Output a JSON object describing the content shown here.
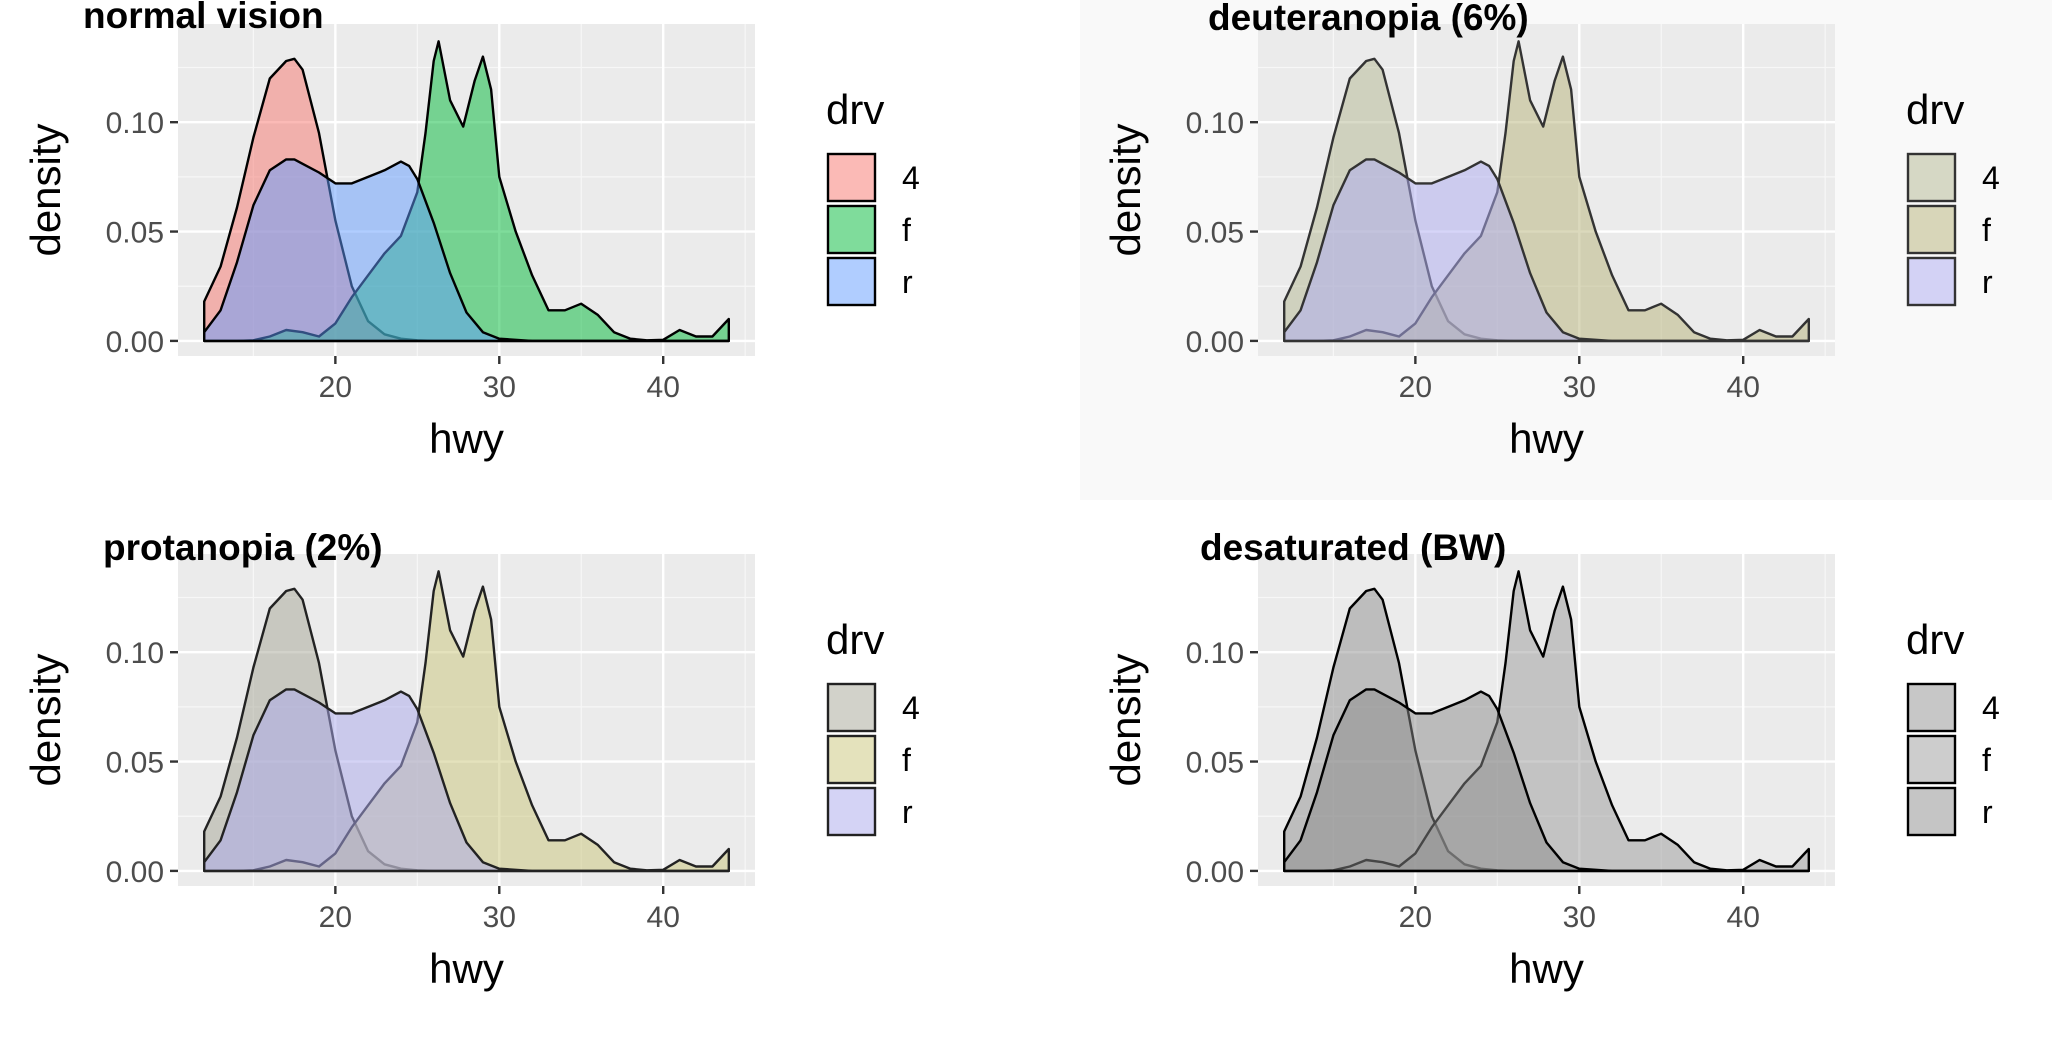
{
  "chart_data": [
    {
      "type": "area",
      "title": "normal vision",
      "xlabel": "hwy",
      "ylabel": "density",
      "xlim": [
        10.4,
        45.6
      ],
      "ylim": [
        -0.0069,
        0.1449
      ],
      "xticks": [
        20,
        30,
        40
      ],
      "yticks": [
        0.0,
        0.05,
        0.1
      ],
      "ytick_labels": [
        "0.00",
        "0.05",
        "0.10"
      ],
      "grid": true,
      "legend": {
        "title": "drv",
        "position": "right",
        "entries": [
          "4",
          "f",
          "r"
        ]
      },
      "series_style": [
        {
          "name": "4",
          "fill": "#F8766D",
          "stroke": "#000000"
        },
        {
          "name": "f",
          "fill": "#00BA38",
          "stroke": "#000000"
        },
        {
          "name": "r",
          "fill": "#619CFF",
          "stroke": "#000000"
        }
      ]
    },
    {
      "type": "area",
      "title": "deuteranopia (6%)",
      "xlabel": "hwy",
      "ylabel": "density",
      "xlim": [
        10.4,
        45.6
      ],
      "ylim": [
        -0.0069,
        0.1449
      ],
      "xticks": [
        20,
        30,
        40
      ],
      "yticks": [
        0.0,
        0.05,
        0.1
      ],
      "ytick_labels": [
        "0.00",
        "0.05",
        "0.10"
      ],
      "grid": true,
      "legend": {
        "title": "drv",
        "position": "right",
        "entries": [
          "4",
          "f",
          "r"
        ]
      },
      "series_style": [
        {
          "name": "4",
          "fill": "#B4B792",
          "stroke": "#333333"
        },
        {
          "name": "f",
          "fill": "#B8B37A",
          "stroke": "#333333"
        },
        {
          "name": "r",
          "fill": "#AEABF2",
          "stroke": "#333333"
        }
      ]
    },
    {
      "type": "area",
      "title": "protanopia (2%)",
      "xlabel": "hwy",
      "ylabel": "density",
      "xlim": [
        10.4,
        45.6
      ],
      "ylim": [
        -0.0069,
        0.1449
      ],
      "xticks": [
        20,
        30,
        40
      ],
      "yticks": [
        0.0,
        0.05,
        0.1
      ],
      "ytick_labels": [
        "0.00",
        "0.05",
        "0.10"
      ],
      "grid": true,
      "legend": {
        "title": "drv",
        "position": "right",
        "entries": [
          "4",
          "f",
          "r"
        ]
      },
      "series_style": [
        {
          "name": "4",
          "fill": "#A5A596",
          "stroke": "#222222"
        },
        {
          "name": "f",
          "fill": "#C9C67A",
          "stroke": "#222222"
        },
        {
          "name": "r",
          "fill": "#AAA8EC",
          "stroke": "#222222"
        }
      ]
    },
    {
      "type": "area",
      "title": "desaturated (BW)",
      "xlabel": "hwy",
      "ylabel": "density",
      "xlim": [
        10.4,
        45.6
      ],
      "ylim": [
        -0.0069,
        0.1449
      ],
      "xticks": [
        20,
        30,
        40
      ],
      "yticks": [
        0.0,
        0.05,
        0.1
      ],
      "ytick_labels": [
        "0.00",
        "0.05",
        "0.10"
      ],
      "grid": true,
      "legend": {
        "title": "drv",
        "position": "right",
        "entries": [
          "4",
          "f",
          "r"
        ]
      },
      "series_style": [
        {
          "name": "4",
          "fill": "#8F8F8F",
          "stroke": "#000000"
        },
        {
          "name": "f",
          "fill": "#9B9B9B",
          "stroke": "#000000"
        },
        {
          "name": "r",
          "fill": "#8C8C8C",
          "stroke": "#000000"
        }
      ]
    }
  ],
  "series": [
    {
      "name": "4",
      "x": [
        12,
        13,
        14,
        15,
        16,
        17,
        17.5,
        18,
        19,
        20,
        21,
        22,
        23,
        24,
        25,
        26,
        27,
        28,
        29,
        30,
        32,
        34,
        36,
        38,
        40,
        42,
        44
      ],
      "y": [
        0.018,
        0.034,
        0.061,
        0.093,
        0.12,
        0.128,
        0.129,
        0.124,
        0.095,
        0.055,
        0.025,
        0.009,
        0.003,
        0.001,
        0.0003,
        0,
        0,
        0,
        0,
        0,
        0,
        0,
        0,
        0,
        0,
        0,
        0
      ]
    },
    {
      "name": "f",
      "x": [
        12,
        14,
        15,
        16,
        17,
        18,
        19,
        20,
        21,
        22,
        23,
        24,
        25,
        25.5,
        26,
        26.3,
        27,
        27.8,
        28.5,
        29,
        29.5,
        30,
        31,
        32,
        33,
        34,
        35,
        36,
        37,
        38,
        39,
        40,
        41,
        42,
        43,
        44
      ],
      "y": [
        0,
        0,
        0.0003,
        0.002,
        0.005,
        0.004,
        0.002,
        0.008,
        0.02,
        0.03,
        0.04,
        0.048,
        0.068,
        0.095,
        0.128,
        0.137,
        0.11,
        0.098,
        0.119,
        0.13,
        0.115,
        0.075,
        0.05,
        0.03,
        0.014,
        0.014,
        0.017,
        0.012,
        0.004,
        0.001,
        0.0003,
        0.0005,
        0.005,
        0.002,
        0.002,
        0.01
      ]
    },
    {
      "name": "r",
      "x": [
        12,
        13,
        14,
        15,
        16,
        17,
        17.5,
        18,
        19,
        20,
        21,
        22,
        23,
        24,
        24.5,
        25,
        26,
        27,
        28,
        29,
        30,
        32,
        34,
        36,
        38,
        40,
        42,
        44
      ],
      "y": [
        0.004,
        0.014,
        0.036,
        0.062,
        0.078,
        0.083,
        0.083,
        0.081,
        0.077,
        0.072,
        0.072,
        0.075,
        0.078,
        0.082,
        0.08,
        0.074,
        0.054,
        0.031,
        0.013,
        0.004,
        0.001,
        0,
        0,
        0,
        0,
        0,
        0,
        0
      ]
    }
  ]
}
